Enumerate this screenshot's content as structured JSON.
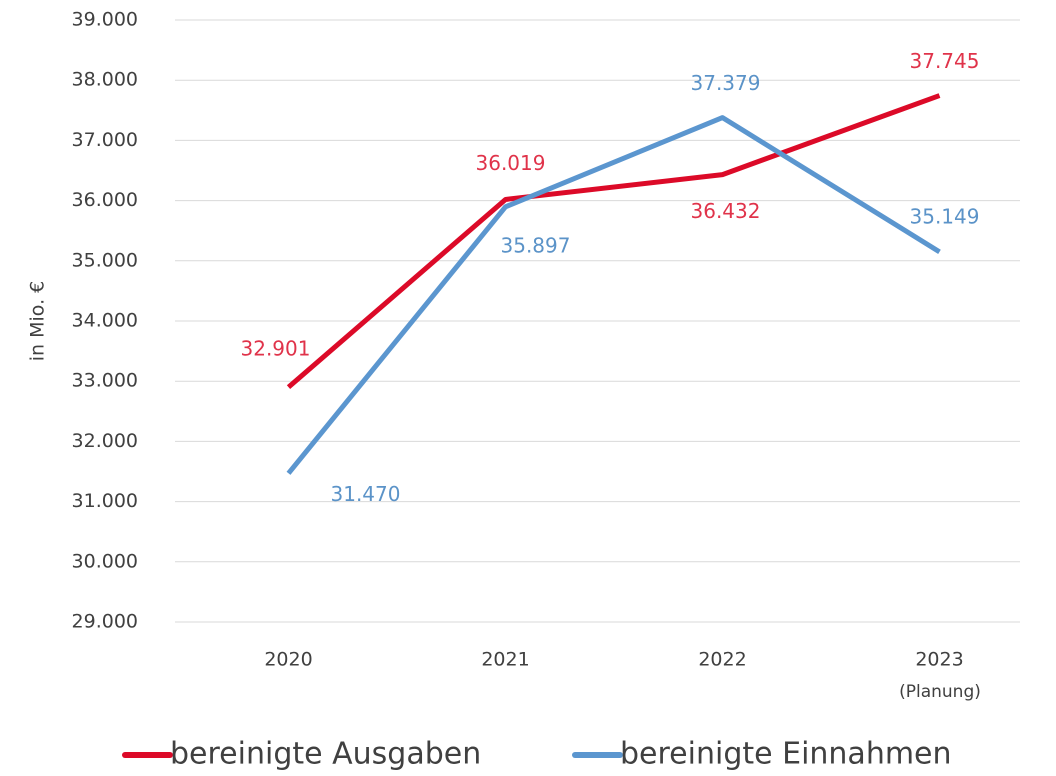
{
  "chart_data": {
    "type": "line",
    "y_label": "in Mio. €",
    "categories": [
      "2020",
      "2021",
      "2022",
      "2023"
    ],
    "category_note": "(Planung)",
    "series": [
      {
        "name": "bereinigte Ausgaben",
        "color": "#dc0a28",
        "label_color": "#e0334a",
        "values": [
          32901,
          36019,
          36432,
          37745
        ],
        "value_labels": [
          "32.901",
          "36.019",
          "36.432",
          "37.745"
        ]
      },
      {
        "name": "bereinigte Einnahmen",
        "color": "#5b96cf",
        "label_color": "#5b93c8",
        "values": [
          31470,
          35897,
          37379,
          35149
        ],
        "value_labels": [
          "31.470",
          "35.897",
          "37.379",
          "35.149"
        ]
      }
    ],
    "ylim": [
      29000,
      39000
    ],
    "yticks": [
      {
        "value": 29000,
        "label": "29.000"
      },
      {
        "value": 30000,
        "label": "30.000"
      },
      {
        "value": 31000,
        "label": "31.000"
      },
      {
        "value": 32000,
        "label": "32.000"
      },
      {
        "value": 33000,
        "label": "33.000"
      },
      {
        "value": 34000,
        "label": "34.000"
      },
      {
        "value": 35000,
        "label": "35.000"
      },
      {
        "value": 36000,
        "label": "36.000"
      },
      {
        "value": 37000,
        "label": "37.000"
      },
      {
        "value": 38000,
        "label": "38.000"
      },
      {
        "value": 39000,
        "label": "39.000"
      }
    ],
    "grid": true
  }
}
